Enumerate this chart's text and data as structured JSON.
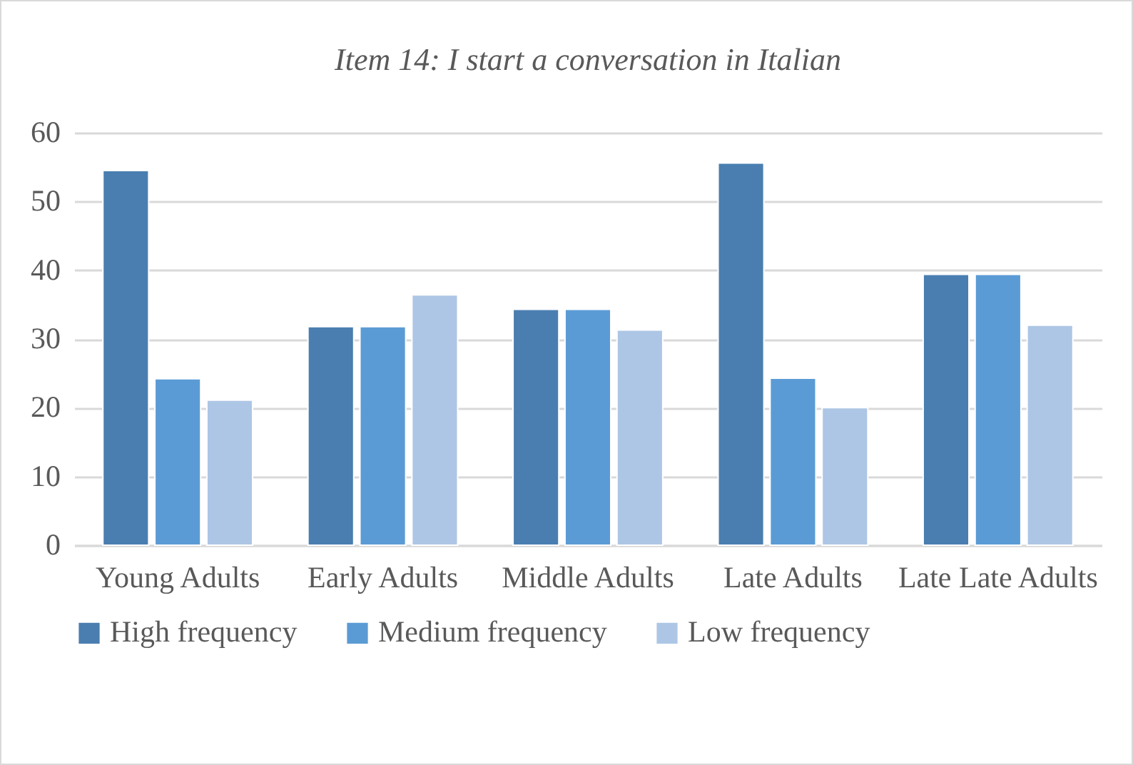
{
  "chart_data": {
    "type": "bar",
    "title": "Item 14: I start a conversation in Italian",
    "categories": [
      "Young Adults",
      "Early Adults",
      "Middle Adults",
      "Late Adults",
      "Late Late Adults"
    ],
    "series": [
      {
        "name": "High frequency",
        "color": "#4a7eb0",
        "values": [
          54.5,
          31.8,
          34.3,
          55.6,
          39.4
        ]
      },
      {
        "name": "Medium frequency",
        "color": "#5b9bd5",
        "values": [
          24.2,
          31.8,
          34.3,
          24.3,
          39.4
        ]
      },
      {
        "name": "Low frequency",
        "color": "#adc6e5",
        "values": [
          21.1,
          36.4,
          31.3,
          20.0,
          32.0
        ]
      }
    ],
    "ylim": [
      0,
      60
    ],
    "yticks": [
      0,
      10,
      20,
      30,
      40,
      50,
      60
    ],
    "grid": "y",
    "legend": "bottom"
  }
}
